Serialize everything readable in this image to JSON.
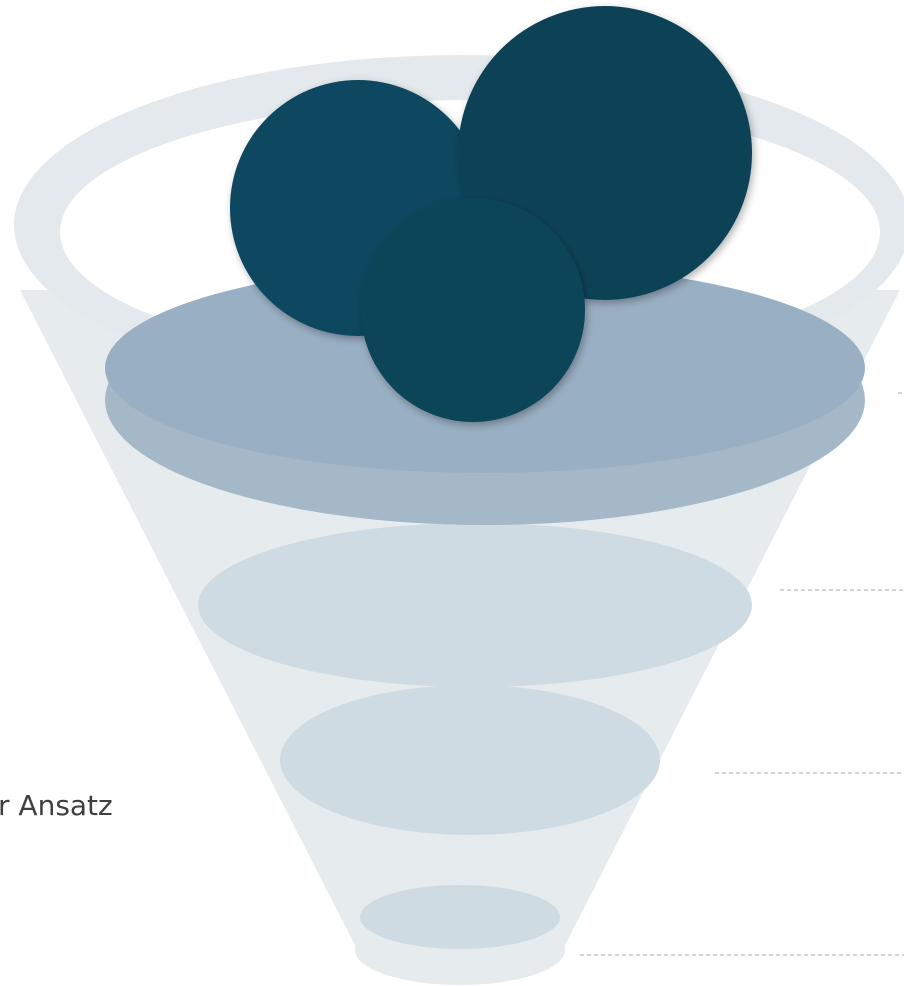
{
  "label": "r Ansatz"
}
